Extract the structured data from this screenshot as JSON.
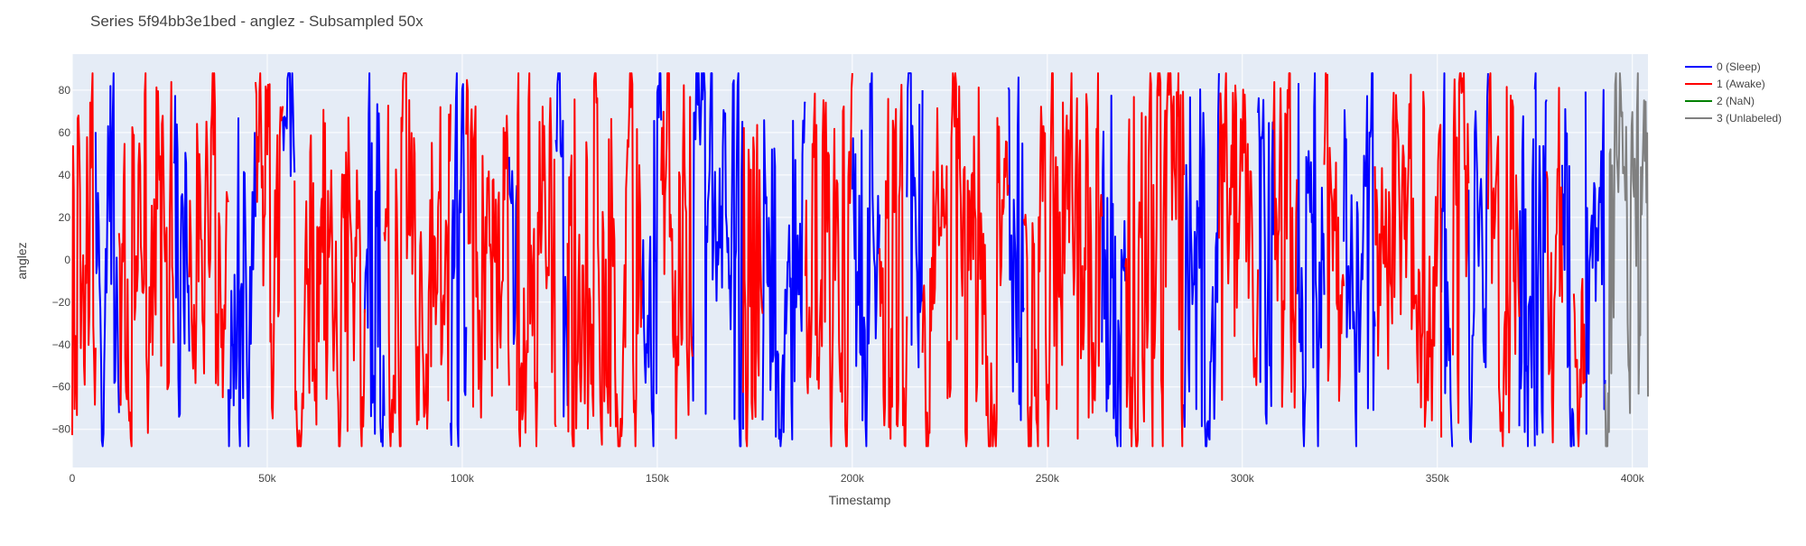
{
  "chart_data": {
    "type": "line",
    "title": "Series 5f94bb3e1bed - anglez - Subsampled 50x",
    "xlabel": "Timestamp",
    "ylabel": "anglez",
    "xlim": [
      0,
      404000
    ],
    "ylim": [
      -98,
      97
    ],
    "grid": true,
    "legend_position": "top-right",
    "x_ticks": [
      {
        "value": 0,
        "label": "0"
      },
      {
        "value": 50000,
        "label": "50k"
      },
      {
        "value": 100000,
        "label": "100k"
      },
      {
        "value": 150000,
        "label": "150k"
      },
      {
        "value": 200000,
        "label": "200k"
      },
      {
        "value": 250000,
        "label": "250k"
      },
      {
        "value": 300000,
        "label": "300k"
      },
      {
        "value": 350000,
        "label": "350k"
      },
      {
        "value": 400000,
        "label": "400k"
      }
    ],
    "y_ticks": [
      {
        "value": 80,
        "label": "80"
      },
      {
        "value": 60,
        "label": "60"
      },
      {
        "value": 40,
        "label": "40"
      },
      {
        "value": 20,
        "label": "20"
      },
      {
        "value": 0,
        "label": "0"
      },
      {
        "value": -20,
        "label": "−20"
      },
      {
        "value": -40,
        "label": "−40"
      },
      {
        "value": -60,
        "label": "−60"
      },
      {
        "value": -80,
        "label": "−80"
      }
    ],
    "series": [
      {
        "name": "0 (Sleep)",
        "color": "#0000ff",
        "segments": [
          [
            6000,
            12000
          ],
          [
            26000,
            30000
          ],
          [
            40000,
            47000
          ],
          [
            54000,
            57000
          ],
          [
            75000,
            80000
          ],
          [
            97000,
            101000
          ],
          [
            112000,
            114000
          ],
          [
            124000,
            127000
          ],
          [
            146000,
            151000
          ],
          [
            159000,
            172000
          ],
          [
            177000,
            188000
          ],
          [
            200000,
            207000
          ],
          [
            214000,
            218000
          ],
          [
            240000,
            244000
          ],
          [
            264000,
            270000
          ],
          [
            285000,
            294000
          ],
          [
            304000,
            308000
          ],
          [
            314000,
            321000
          ],
          [
            326000,
            334000
          ],
          [
            351000,
            354000
          ],
          [
            358000,
            363000
          ],
          [
            371000,
            375000
          ],
          [
            375000,
            378000
          ],
          [
            382000,
            385000
          ],
          [
            388000,
            393000
          ]
        ]
      },
      {
        "name": "1 (Awake)",
        "color": "#ff0000",
        "segments": [
          [
            0,
            6000
          ],
          [
            12000,
            26000
          ],
          [
            30000,
            40000
          ],
          [
            47000,
            54000
          ],
          [
            57000,
            75000
          ],
          [
            80000,
            97000
          ],
          [
            101000,
            112000
          ],
          [
            114000,
            124000
          ],
          [
            127000,
            146000
          ],
          [
            151000,
            159000
          ],
          [
            172000,
            177000
          ],
          [
            188000,
            200000
          ],
          [
            207000,
            214000
          ],
          [
            218000,
            240000
          ],
          [
            244000,
            264000
          ],
          [
            270000,
            285000
          ],
          [
            294000,
            304000
          ],
          [
            308000,
            314000
          ],
          [
            321000,
            326000
          ],
          [
            334000,
            351000
          ],
          [
            354000,
            358000
          ],
          [
            363000,
            371000
          ],
          [
            378000,
            382000
          ],
          [
            385000,
            388000
          ]
        ]
      },
      {
        "name": "2 (NaN)",
        "color": "#008000",
        "segments": []
      },
      {
        "name": "3 (Unlabeled)",
        "color": "#808080",
        "segments": [
          [
            393000,
            404000
          ]
        ]
      }
    ],
    "sampling": {
      "step": 200,
      "seed": 5941,
      "spike_amplitude": 85
    }
  }
}
